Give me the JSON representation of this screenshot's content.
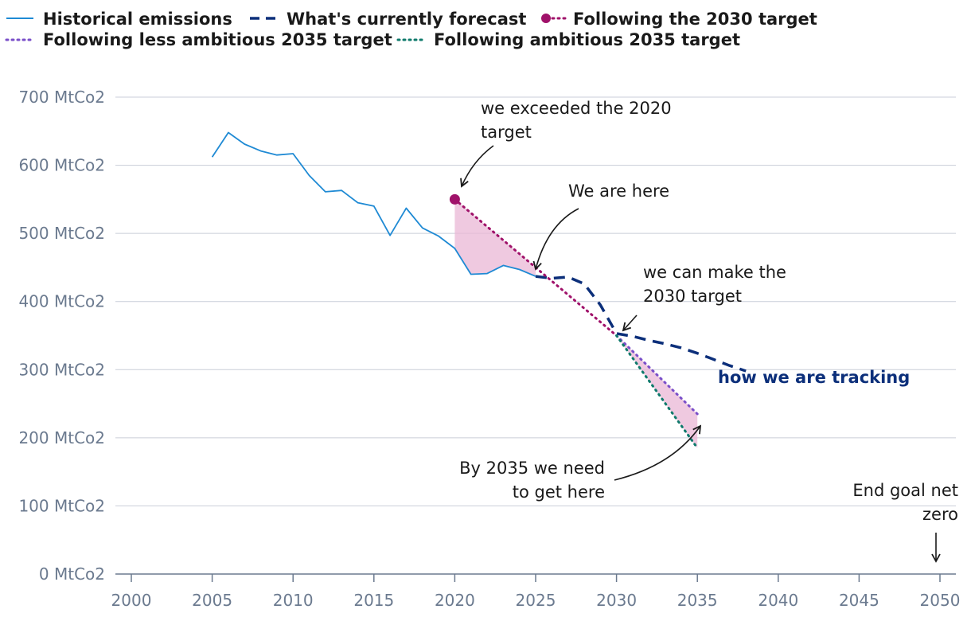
{
  "chart_data": {
    "type": "line",
    "x_ticks": [
      2000,
      2005,
      2010,
      2015,
      2020,
      2025,
      2030,
      2035,
      2040,
      2045,
      2050
    ],
    "y_ticks": [
      "0 MtCo2",
      "100 MtCo2",
      "200 MtCo2",
      "300 MtCo2",
      "400 MtCo2",
      "500 MtCo2",
      "600 MtCo2",
      "700 MtCo2"
    ],
    "xlim": [
      2000,
      2050
    ],
    "ylim": [
      0,
      700
    ],
    "grid": true,
    "legend": "top-left",
    "legend_entries": [
      "Historical emissions",
      "What's currently forecast",
      "Following the 2030 target",
      "Following less ambitious 2035 target",
      "Following ambitious 2035 target"
    ],
    "series": [
      {
        "name": "Historical emissions",
        "style": "solid",
        "color": "#1f8ad4",
        "x": [
          2005,
          2006,
          2007,
          2008,
          2009,
          2010,
          2011,
          2012,
          2013,
          2014,
          2015,
          2016,
          2017,
          2018,
          2019,
          2020,
          2021,
          2022,
          2023,
          2024,
          2025
        ],
        "y": [
          612,
          648,
          631,
          621,
          615,
          617,
          585,
          561,
          563,
          545,
          540,
          497,
          537,
          508,
          496,
          478,
          440,
          441,
          453,
          447,
          437
        ]
      },
      {
        "name": "What's currently forecast",
        "style": "dashed",
        "color": "#0c2f7a",
        "x": [
          2025,
          2026,
          2027,
          2028,
          2029,
          2030,
          2031,
          2032,
          2033,
          2034,
          2035,
          2036,
          2037,
          2038
        ],
        "y": [
          437,
          434,
          436,
          426,
          395,
          353,
          349,
          343,
          338,
          332,
          324,
          315,
          306,
          298
        ]
      },
      {
        "name": "Following the 2030 target",
        "style": "dotted-with-start-marker",
        "color": "#a0126a",
        "x": [
          2020,
          2030
        ],
        "y": [
          550,
          350
        ]
      },
      {
        "name": "Following less ambitious 2035 target",
        "style": "dotted",
        "color": "#7a4fc9",
        "x": [
          2030,
          2035
        ],
        "y": [
          350,
          235
        ]
      },
      {
        "name": "Following ambitious 2035 target",
        "style": "dotted",
        "color": "#0f7a6c",
        "x": [
          2030,
          2035
        ],
        "y": [
          350,
          185
        ]
      }
    ],
    "shaded_regions": [
      {
        "between": [
          "Following the 2030 target",
          "Historical emissions"
        ],
        "x_range": [
          2020,
          2025
        ],
        "color": "#e9b7d6"
      },
      {
        "between": [
          "Following less ambitious 2035 target",
          "Following ambitious 2035 target"
        ],
        "x_range": [
          2030,
          2035
        ],
        "color": "#e9b7d6"
      }
    ],
    "annotations": [
      {
        "lines": [
          "we exceeded the 2020",
          "target"
        ],
        "x": 2020,
        "y": 550
      },
      {
        "lines": [
          "We are here"
        ],
        "x": 2025,
        "y": 437
      },
      {
        "lines": [
          "we can make the",
          "2030 target"
        ],
        "x": 2030,
        "y": 353
      },
      {
        "lines": [
          "how we are tracking"
        ],
        "x": 2038,
        "y": 298
      },
      {
        "lines": [
          "By 2035 we need",
          "to get here"
        ],
        "x": 2035,
        "y": 222
      },
      {
        "lines": [
          "End goal net",
          "zero"
        ],
        "x": 2050,
        "y": 0
      }
    ]
  }
}
